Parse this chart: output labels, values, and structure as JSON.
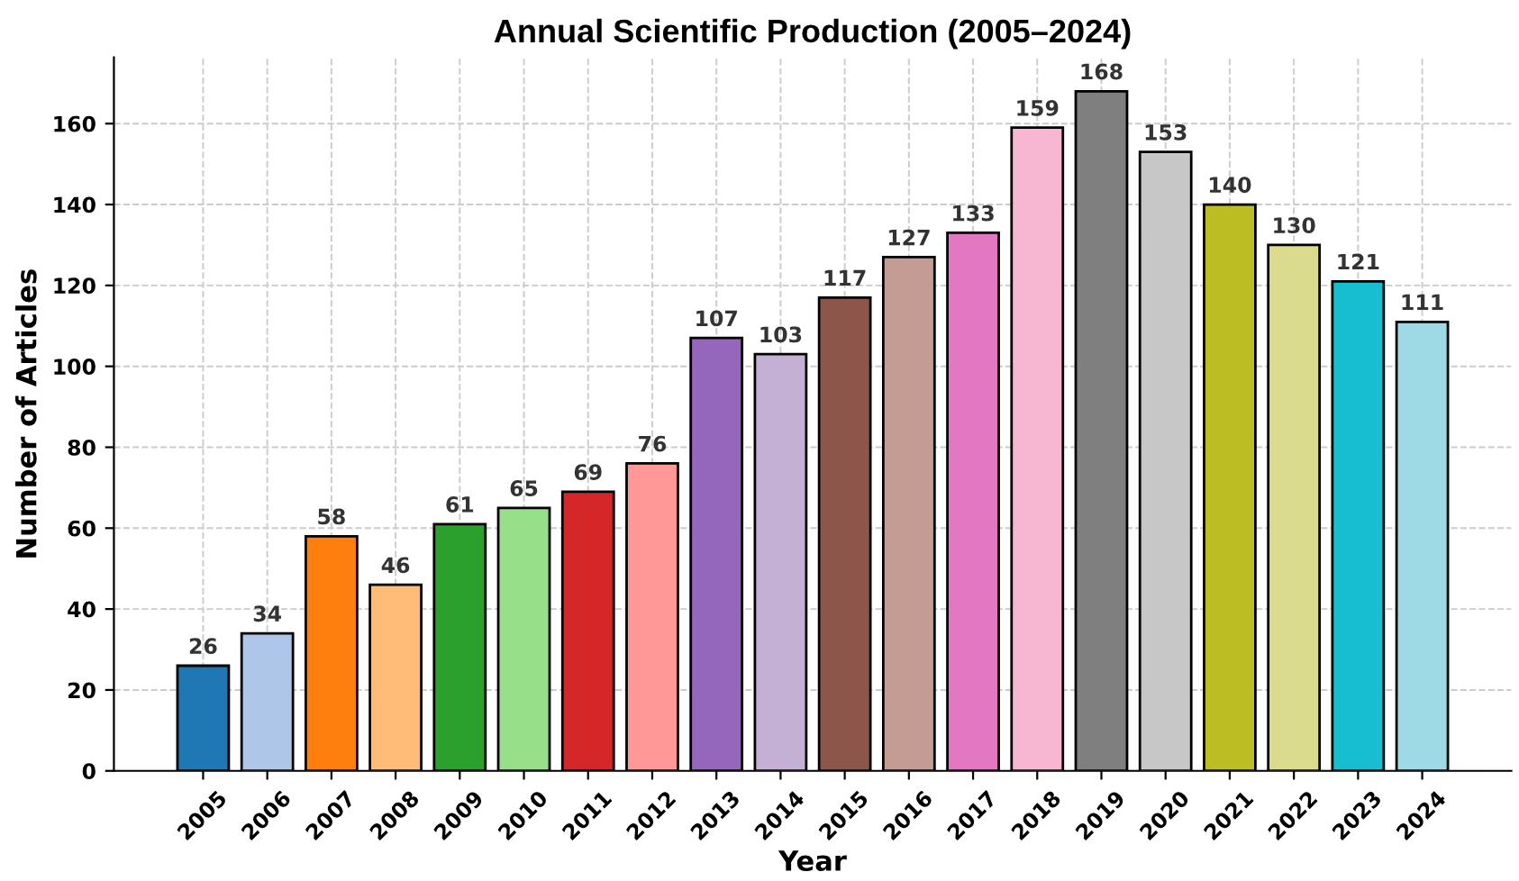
{
  "chart_data": {
    "type": "bar",
    "title": "Annual Scientific Production (2005–2024)",
    "xlabel": "Year",
    "ylabel": "Number of Articles",
    "categories": [
      "2005",
      "2006",
      "2007",
      "2008",
      "2009",
      "2010",
      "2011",
      "2012",
      "2013",
      "2014",
      "2015",
      "2016",
      "2017",
      "2018",
      "2019",
      "2020",
      "2021",
      "2022",
      "2023",
      "2024"
    ],
    "values": [
      26,
      34,
      58,
      46,
      61,
      65,
      69,
      76,
      107,
      103,
      117,
      127,
      133,
      159,
      168,
      153,
      140,
      130,
      121,
      111
    ],
    "colors": [
      "#1f77b4",
      "#aec7e8",
      "#ff7f0e",
      "#ffbb78",
      "#2ca02c",
      "#98df8a",
      "#d62728",
      "#ff9896",
      "#9467bd",
      "#c5b0d5",
      "#8c564b",
      "#c49c94",
      "#e377c2",
      "#f7b6d2",
      "#7f7f7f",
      "#c7c7c7",
      "#bcbd22",
      "#dbdb8d",
      "#17becf",
      "#9edae5"
    ],
    "ylim": [
      0,
      176.4
    ],
    "yticks": [
      0,
      20,
      40,
      60,
      80,
      100,
      120,
      140,
      160
    ],
    "grid": true,
    "data_labels": true
  }
}
